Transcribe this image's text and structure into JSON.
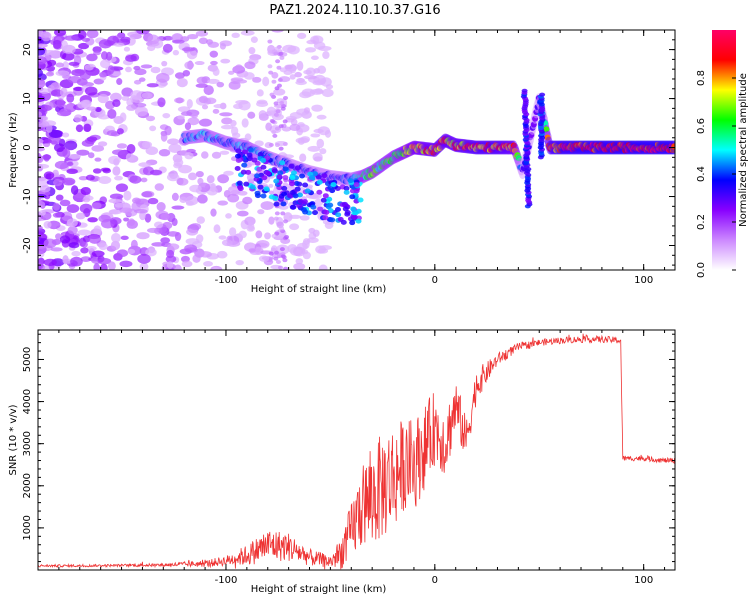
{
  "title": "PAZ1.2024.110.10.37.G16",
  "chart_data": [
    {
      "type": "heatmap",
      "xlabel": "Height of straight line (km)",
      "ylabel": "Frequency (Hz)",
      "xlim": [
        -190,
        115
      ],
      "ylim": [
        -25,
        24
      ],
      "xticks": [
        -100,
        0,
        100
      ],
      "xtick_labels": [
        "-100",
        "0",
        "100"
      ],
      "yticks": [
        -20,
        -10,
        0,
        10,
        20
      ],
      "ytick_labels": [
        "-20",
        "-10",
        "0",
        "10",
        "20"
      ],
      "colorbar": {
        "label": "Normalized spectral amplitude",
        "range": [
          0,
          1
        ],
        "ticks": [
          0.0,
          0.2,
          0.4,
          0.6,
          0.8
        ],
        "tick_labels": [
          "0.0",
          "0.2",
          "0.4",
          "0.6",
          "0.8"
        ],
        "colors": [
          "#ffffff",
          "#cc88ff",
          "#8800ff",
          "#0000ff",
          "#00ffff",
          "#00ff00",
          "#ffff00",
          "#ff0000",
          "#ff0066"
        ]
      },
      "ridge": {
        "x": [
          -120,
          -110,
          -100,
          -90,
          -80,
          -70,
          -60,
          -50,
          -40,
          -35,
          -30,
          -20,
          -10,
          0,
          5,
          10,
          20,
          30,
          38,
          42,
          50,
          55,
          60,
          80,
          100,
          115
        ],
        "y": [
          2,
          2.5,
          1,
          0,
          -2,
          -3.5,
          -5,
          -6,
          -6.5,
          -6,
          -5,
          -2,
          0,
          -0.5,
          1.5,
          0.5,
          0,
          0,
          0,
          -5,
          10,
          0,
          0,
          0,
          0,
          0
        ],
        "amplitude": [
          0.4,
          0.45,
          0.4,
          0.45,
          0.4,
          0.35,
          0.35,
          0.35,
          0.4,
          0.55,
          0.6,
          0.6,
          0.75,
          0.8,
          0.8,
          0.8,
          0.85,
          0.85,
          0.8,
          0.3,
          0.3,
          0.85,
          0.92,
          0.95,
          0.95,
          0.95
        ]
      },
      "noise_region": {
        "x": [
          -190,
          -90
        ],
        "y": [
          -25,
          24
        ],
        "amplitude": 0.15
      }
    },
    {
      "type": "line",
      "xlabel": "Height of straight line (km)",
      "ylabel": "SNR (10 * v/v)",
      "xlim": [
        -190,
        115
      ],
      "ylim": [
        0,
        5700
      ],
      "xticks": [
        -100,
        0,
        100
      ],
      "xtick_labels": [
        "-100",
        "0",
        "100"
      ],
      "yticks": [
        1000,
        2000,
        3000,
        4000,
        5000
      ],
      "ytick_labels": [
        "1000",
        "2000",
        "3000",
        "4000",
        "5000"
      ],
      "color": "#ee3333",
      "series": [
        {
          "x": [
            -190,
            -170,
            -150,
            -130,
            -110,
            -100,
            -90,
            -80,
            -70,
            -60,
            -50,
            -45,
            -40,
            -35,
            -30,
            -25,
            -20,
            -15,
            -10,
            -5,
            0,
            5,
            10,
            15,
            20,
            25,
            30,
            40,
            50,
            60,
            70,
            80,
            89,
            90,
            95,
            100,
            110,
            115
          ],
          "y": [
            100,
            100,
            110,
            120,
            150,
            220,
            350,
            600,
            550,
            300,
            200,
            400,
            900,
            1500,
            1700,
            2000,
            2200,
            2500,
            2500,
            2900,
            3400,
            3000,
            3900,
            3100,
            4400,
            4700,
            5000,
            5300,
            5400,
            5450,
            5480,
            5480,
            5450,
            2650,
            2650,
            2650,
            2600,
            2600
          ],
          "noise_amplitude": [
            30,
            30,
            30,
            40,
            80,
            120,
            250,
            400,
            350,
            200,
            150,
            400,
            700,
            1000,
            1200,
            1300,
            1300,
            1100,
            1100,
            1000,
            900,
            800,
            700,
            500,
            400,
            250,
            150,
            100,
            80,
            80,
            80,
            80,
            80,
            60,
            60,
            60,
            60,
            60
          ]
        }
      ]
    }
  ]
}
